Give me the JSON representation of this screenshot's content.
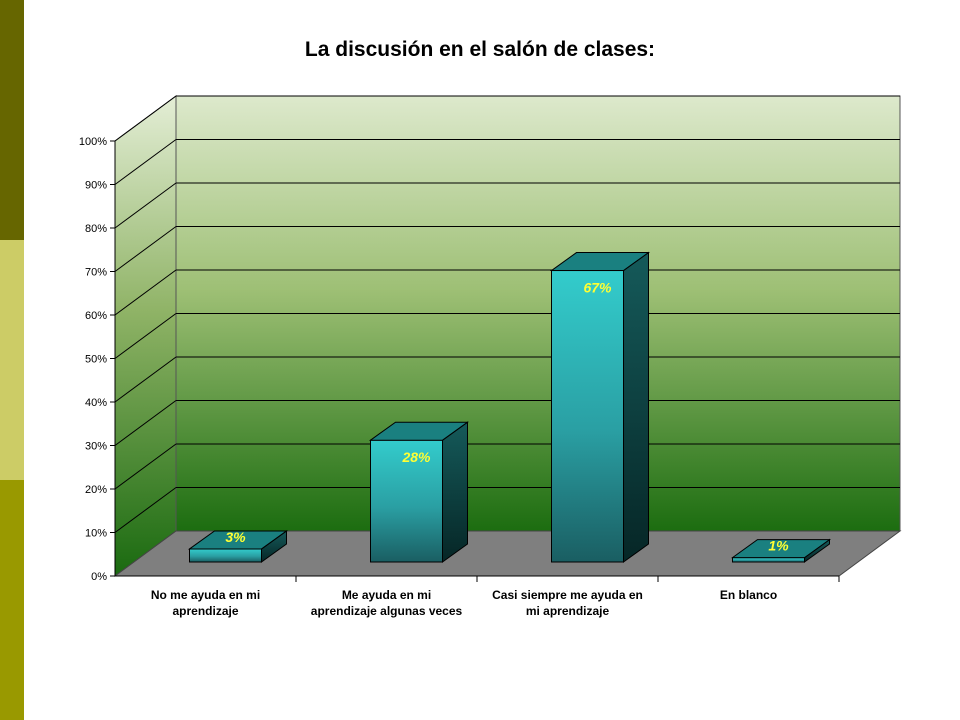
{
  "slide": {
    "accent_colors": [
      "#666600",
      "#cccc66",
      "#999900"
    ]
  },
  "chart_data": {
    "type": "bar",
    "style": "3d-column",
    "title": "La discusión en el salón de clases:",
    "categories": [
      [
        "No me ayuda en mi",
        "aprendizaje"
      ],
      [
        "Me ayuda en mi",
        "aprendizaje algunas veces"
      ],
      [
        "Casi siempre me ayuda en",
        "mi aprendizaje"
      ],
      [
        "En blanco"
      ]
    ],
    "values": [
      3,
      28,
      67,
      1
    ],
    "data_labels": [
      "3%",
      "28%",
      "67%",
      "1%"
    ],
    "ylim": [
      0,
      100
    ],
    "yticks": [
      0,
      10,
      20,
      30,
      40,
      50,
      60,
      70,
      80,
      90,
      100
    ],
    "ytick_labels": [
      "0%",
      "10%",
      "20%",
      "30%",
      "40%",
      "50%",
      "60%",
      "70%",
      "80%",
      "90%",
      "100%"
    ],
    "xlabel": "",
    "ylabel": "",
    "grid": true,
    "legend": "none",
    "colors": {
      "bar_front": "#2fcccc",
      "bar_side": "#0f4d4d",
      "bar_top": "#1a8080",
      "wall_top": "#dde9cc",
      "wall_bottom": "#1c6d10",
      "floor": "#7f7f7f",
      "data_label": "#ffff33"
    }
  }
}
